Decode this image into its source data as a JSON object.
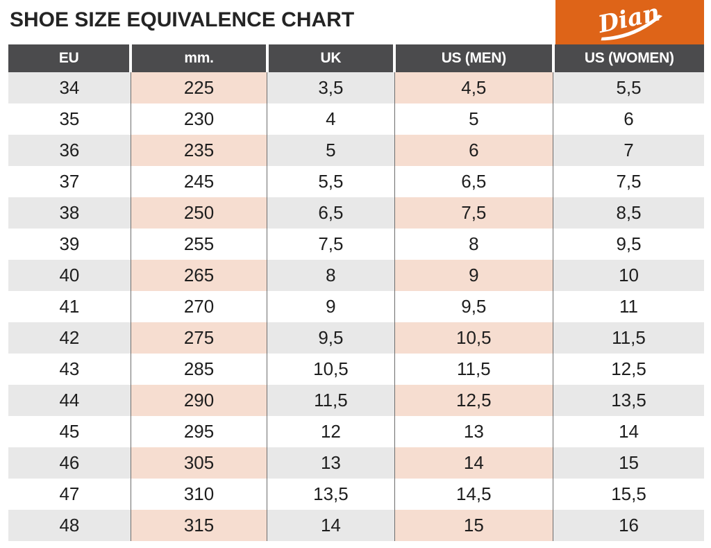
{
  "logo": {
    "brand": "Dian",
    "background": "#de6418",
    "text_color": "#ffffff"
  },
  "theme": {
    "header_bg": "#4b4b4d",
    "header_text": "#ffffff",
    "stripe_gray": "#e8e8e8",
    "stripe_peach": "#f6ddd0",
    "grid_line": "#6b6b6b",
    "body_text": "#1e1e1e"
  },
  "chart_data": {
    "type": "table",
    "title": "SHOE SIZE EQUIVALENCE CHART",
    "columns": [
      "EU",
      "mm.",
      "UK",
      "US (MEN)",
      "US (WOMEN)"
    ],
    "column_slugs": [
      "eu",
      "mm",
      "uk",
      "us-men",
      "us-women"
    ],
    "highlighted_column_indexes": [
      1,
      3
    ],
    "striped_row_indexes": [
      0,
      2,
      4,
      6,
      8,
      10,
      12,
      14
    ],
    "rows": [
      [
        "34",
        "225",
        "3,5",
        "4,5",
        "5,5"
      ],
      [
        "35",
        "230",
        "4",
        "5",
        "6"
      ],
      [
        "36",
        "235",
        "5",
        "6",
        "7"
      ],
      [
        "37",
        "245",
        "5,5",
        "6,5",
        "7,5"
      ],
      [
        "38",
        "250",
        "6,5",
        "7,5",
        "8,5"
      ],
      [
        "39",
        "255",
        "7,5",
        "8",
        "9,5"
      ],
      [
        "40",
        "265",
        "8",
        "9",
        "10"
      ],
      [
        "41",
        "270",
        "9",
        "9,5",
        "11"
      ],
      [
        "42",
        "275",
        "9,5",
        "10,5",
        "11,5"
      ],
      [
        "43",
        "285",
        "10,5",
        "11,5",
        "12,5"
      ],
      [
        "44",
        "290",
        "11,5",
        "12,5",
        "13,5"
      ],
      [
        "45",
        "295",
        "12",
        "13",
        "14"
      ],
      [
        "46",
        "305",
        "13",
        "14",
        "15"
      ],
      [
        "47",
        "310",
        "13,5",
        "14,5",
        "15,5"
      ],
      [
        "48",
        "315",
        "14",
        "15",
        "16"
      ]
    ]
  }
}
